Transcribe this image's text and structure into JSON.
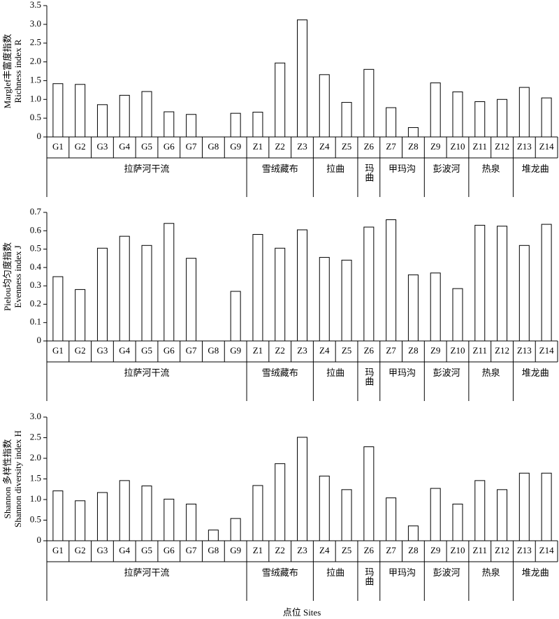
{
  "chart_data": [
    {
      "type": "bar",
      "ylabel": [
        "Marglef丰富度指数",
        "Richness index R"
      ],
      "categories": [
        "G1",
        "G2",
        "G3",
        "G4",
        "G5",
        "G6",
        "G7",
        "G8",
        "G9",
        "Z1",
        "Z2",
        "Z3",
        "Z4",
        "Z5",
        "Z6",
        "Z7",
        "Z8",
        "Z9",
        "Z10",
        "Z11",
        "Z12",
        "Z13",
        "Z14"
      ],
      "values": [
        1.42,
        1.4,
        0.86,
        1.11,
        1.21,
        0.67,
        0.6,
        0,
        0.63,
        0.66,
        1.97,
        3.12,
        1.66,
        0.92,
        1.8,
        0.78,
        0.25,
        1.44,
        1.2,
        0.94,
        1.0,
        1.32,
        1.04
      ],
      "ylim": [
        0,
        3.5
      ],
      "yticks": [
        0,
        0.5,
        {
          "value": 1,
          "label": "1.0"
        },
        1.5,
        {
          "value": 2,
          "label": "2.0"
        },
        2.5,
        {
          "value": 3,
          "label": "3.0"
        },
        3.5
      ],
      "groups": [
        {
          "name": "拉萨河干流",
          "members": [
            "G1",
            "G2",
            "G3",
            "G4",
            "G5",
            "G6",
            "G7",
            "G8",
            "G9"
          ]
        },
        {
          "name": "雪绒藏布",
          "members": [
            "Z1",
            "Z2",
            "Z3"
          ]
        },
        {
          "name": "拉曲",
          "members": [
            "Z4",
            "Z5"
          ]
        },
        {
          "name": "玛曲",
          "members": [
            "Z6"
          ]
        },
        {
          "name": "甲玛沟",
          "members": [
            "Z7",
            "Z8"
          ]
        },
        {
          "name": "彭波河",
          "members": [
            "Z9",
            "Z10"
          ]
        },
        {
          "name": "热泉",
          "members": [
            "Z11",
            "Z12"
          ]
        },
        {
          "name": "堆龙曲",
          "members": [
            "Z13",
            "Z14"
          ]
        }
      ],
      "color": "#ffffff"
    },
    {
      "type": "bar",
      "ylabel": [
        "Pielou均匀度指数",
        "Evenness index J"
      ],
      "categories": [
        "G1",
        "G2",
        "G3",
        "G4",
        "G5",
        "G6",
        "G7",
        "G8",
        "G9",
        "Z1",
        "Z2",
        "Z3",
        "Z4",
        "Z5",
        "Z6",
        "Z7",
        "Z8",
        "Z9",
        "Z10",
        "Z11",
        "Z12",
        "Z13",
        "Z14"
      ],
      "values": [
        0.35,
        0.28,
        0.505,
        0.57,
        0.52,
        0.64,
        0.45,
        0,
        0.27,
        0.58,
        0.505,
        0.605,
        0.455,
        0.44,
        0.62,
        0.66,
        0.36,
        0.37,
        0.285,
        0.63,
        0.625,
        0.52,
        0.635
      ],
      "ylim": [
        0,
        0.7
      ],
      "yticks": [
        0,
        0.1,
        0.2,
        0.3,
        0.4,
        0.5,
        0.6,
        0.7
      ],
      "groups": [
        {
          "name": "拉萨河干流",
          "members": [
            "G1",
            "G2",
            "G3",
            "G4",
            "G5",
            "G6",
            "G7",
            "G8",
            "G9"
          ]
        },
        {
          "name": "雪绒藏布",
          "members": [
            "Z1",
            "Z2",
            "Z3"
          ]
        },
        {
          "name": "拉曲",
          "members": [
            "Z4",
            "Z5"
          ]
        },
        {
          "name": "玛曲",
          "members": [
            "Z6"
          ]
        },
        {
          "name": "甲玛沟",
          "members": [
            "Z7",
            "Z8"
          ]
        },
        {
          "name": "彭波河",
          "members": [
            "Z9",
            "Z10"
          ]
        },
        {
          "name": "热泉",
          "members": [
            "Z11",
            "Z12"
          ]
        },
        {
          "name": "堆龙曲",
          "members": [
            "Z13",
            "Z14"
          ]
        }
      ],
      "color": "#ffffff"
    },
    {
      "type": "bar",
      "ylabel": [
        "Shannon 多样性指数",
        "Shannon diversity index H"
      ],
      "xlabel": "点位 Sites",
      "categories": [
        "G1",
        "G2",
        "G3",
        "G4",
        "G5",
        "G6",
        "G7",
        "G8",
        "G9",
        "Z1",
        "Z2",
        "Z3",
        "Z4",
        "Z5",
        "Z6",
        "Z7",
        "Z8",
        "Z9",
        "Z10",
        "Z11",
        "Z12",
        "Z13",
        "Z14"
      ],
      "values": [
        1.21,
        0.97,
        1.17,
        1.46,
        1.33,
        1.01,
        0.89,
        0.26,
        0.54,
        1.34,
        1.87,
        2.51,
        1.57,
        1.24,
        2.28,
        1.04,
        0.36,
        1.27,
        0.89,
        1.46,
        1.24,
        1.64,
        1.64
      ],
      "ylim": [
        0,
        3
      ],
      "yticks": [
        0,
        0.5,
        {
          "value": 1,
          "label": "1.0"
        },
        1.5,
        {
          "value": 2,
          "label": "2.0"
        },
        2.5,
        {
          "value": 3,
          "label": "3.0"
        }
      ],
      "groups": [
        {
          "name": "拉萨河干流",
          "members": [
            "G1",
            "G2",
            "G3",
            "G4",
            "G5",
            "G6",
            "G7",
            "G8",
            "G9"
          ]
        },
        {
          "name": "雪绒藏布",
          "members": [
            "Z1",
            "Z2",
            "Z3"
          ]
        },
        {
          "name": "拉曲",
          "members": [
            "Z4",
            "Z5"
          ]
        },
        {
          "name": "玛曲",
          "members": [
            "Z6"
          ]
        },
        {
          "name": "甲玛沟",
          "members": [
            "Z7",
            "Z8"
          ]
        },
        {
          "name": "彭波河",
          "members": [
            "Z9",
            "Z10"
          ]
        },
        {
          "name": "热泉",
          "members": [
            "Z11",
            "Z12"
          ]
        },
        {
          "name": "堆龙曲",
          "members": [
            "Z13",
            "Z14"
          ]
        }
      ],
      "color": "#ffffff"
    }
  ]
}
